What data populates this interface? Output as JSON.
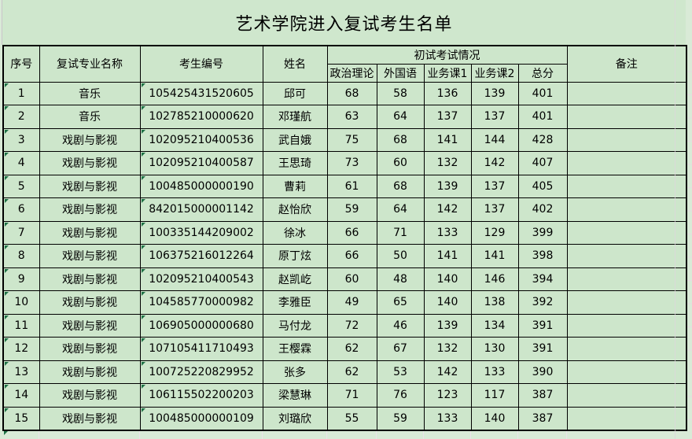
{
  "window": {
    "cell_background": "#cde6cb",
    "outside_background": "#d9ead7",
    "border_color": "#000000",
    "error_indicator_color": "#1e7145"
  },
  "title": "艺术学院进入复试考生名单",
  "table": {
    "headers": {
      "no": "序号",
      "major": "复试专业名称",
      "id": "考生编号",
      "name": "姓名",
      "exam_group": "初试考试情况",
      "politics": "政治理论",
      "foreign": "外国语",
      "course1": "业务课1",
      "course2": "业务课2",
      "total": "总分",
      "remark": "备注"
    },
    "rows": [
      {
        "no": "1",
        "major": "音乐",
        "id": "105425431520605",
        "name": "邱可",
        "politics": "68",
        "foreign": "58",
        "course1": "136",
        "course2": "139",
        "total": "401",
        "remark": ""
      },
      {
        "no": "2",
        "major": "音乐",
        "id": "102785210000620",
        "name": "邓瑾航",
        "politics": "63",
        "foreign": "64",
        "course1": "137",
        "course2": "137",
        "total": "401",
        "remark": ""
      },
      {
        "no": "3",
        "major": "戏剧与影视",
        "id": "102095210400536",
        "name": "武自娥",
        "politics": "75",
        "foreign": "68",
        "course1": "141",
        "course2": "144",
        "total": "428",
        "remark": ""
      },
      {
        "no": "4",
        "major": "戏剧与影视",
        "id": "102095210400587",
        "name": "王思琦",
        "politics": "73",
        "foreign": "60",
        "course1": "132",
        "course2": "142",
        "total": "407",
        "remark": ""
      },
      {
        "no": "5",
        "major": "戏剧与影视",
        "id": "100485000000190",
        "name": "曹莉",
        "politics": "61",
        "foreign": "68",
        "course1": "139",
        "course2": "137",
        "total": "405",
        "remark": ""
      },
      {
        "no": "6",
        "major": "戏剧与影视",
        "id": "842015000001142",
        "name": "赵怡欣",
        "politics": "59",
        "foreign": "64",
        "course1": "142",
        "course2": "137",
        "total": "402",
        "remark": ""
      },
      {
        "no": "7",
        "major": "戏剧与影视",
        "id": "100335144209002",
        "name": "徐冰",
        "politics": "66",
        "foreign": "71",
        "course1": "133",
        "course2": "129",
        "total": "399",
        "remark": ""
      },
      {
        "no": "8",
        "major": "戏剧与影视",
        "id": "106375216012264",
        "name": "原丁炫",
        "politics": "66",
        "foreign": "50",
        "course1": "141",
        "course2": "141",
        "total": "398",
        "remark": ""
      },
      {
        "no": "9",
        "major": "戏剧与影视",
        "id": "102095210400543",
        "name": "赵凯屹",
        "politics": "60",
        "foreign": "48",
        "course1": "140",
        "course2": "146",
        "total": "394",
        "remark": ""
      },
      {
        "no": "10",
        "major": "戏剧与影视",
        "id": "104585770000982",
        "name": "李雅臣",
        "politics": "49",
        "foreign": "65",
        "course1": "140",
        "course2": "138",
        "total": "392",
        "remark": ""
      },
      {
        "no": "11",
        "major": "戏剧与影视",
        "id": "106905000000680",
        "name": "马付龙",
        "politics": "72",
        "foreign": "46",
        "course1": "139",
        "course2": "134",
        "total": "391",
        "remark": ""
      },
      {
        "no": "12",
        "major": "戏剧与影视",
        "id": "107105411710493",
        "name": "王樱霖",
        "politics": "62",
        "foreign": "67",
        "course1": "132",
        "course2": "130",
        "total": "391",
        "remark": ""
      },
      {
        "no": "13",
        "major": "戏剧与影视",
        "id": "100725220829952",
        "name": "张多",
        "politics": "62",
        "foreign": "53",
        "course1": "142",
        "course2": "133",
        "total": "390",
        "remark": ""
      },
      {
        "no": "14",
        "major": "戏剧与影视",
        "id": "106115502200203",
        "name": "梁慧琳",
        "politics": "71",
        "foreign": "76",
        "course1": "123",
        "course2": "117",
        "total": "387",
        "remark": ""
      },
      {
        "no": "15",
        "major": "戏剧与影视",
        "id": "100485000000109",
        "name": "刘璐欣",
        "politics": "55",
        "foreign": "59",
        "course1": "133",
        "course2": "140",
        "total": "387",
        "remark": ""
      }
    ]
  }
}
